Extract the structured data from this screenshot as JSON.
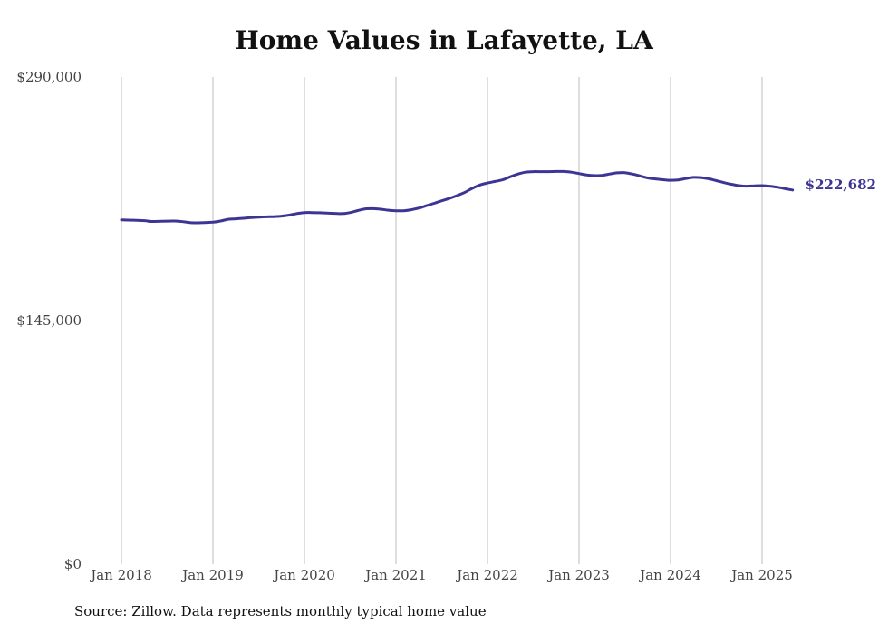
{
  "chart_data": {
    "type": "line",
    "title": "Home Values in Lafayette, LA",
    "xlabel": "",
    "ylabel": "",
    "ylim": [
      0,
      290000
    ],
    "y_ticks": [
      {
        "value": 0,
        "label": "$0"
      },
      {
        "value": 145000,
        "label": "$145,000"
      },
      {
        "value": 290000,
        "label": "$290,000"
      }
    ],
    "x_ticks": [
      "Jan 2018",
      "Jan 2019",
      "Jan 2020",
      "Jan 2021",
      "Jan 2022",
      "Jan 2023",
      "Jan 2024",
      "Jan 2025"
    ],
    "grid": "vertical",
    "series": [
      {
        "color": "#3d3594",
        "x": [
          "2018-01",
          "2018-04",
          "2018-05",
          "2018-08",
          "2018-10",
          "2018-11",
          "2019-01",
          "2019-02",
          "2019-03",
          "2019-04",
          "2019-05",
          "2019-06",
          "2019-07",
          "2019-08",
          "2019-09",
          "2019-10",
          "2019-11",
          "2019-12",
          "2020-01",
          "2020-02",
          "2020-03",
          "2020-04",
          "2020-05",
          "2020-06",
          "2020-07",
          "2020-08",
          "2020-09",
          "2020-10",
          "2020-11",
          "2020-12",
          "2021-01",
          "2021-02",
          "2021-03",
          "2021-04",
          "2021-05",
          "2021-06",
          "2021-07",
          "2021-08",
          "2021-09",
          "2021-10",
          "2021-11",
          "2021-12",
          "2022-01",
          "2022-02",
          "2022-03",
          "2022-04",
          "2022-05",
          "2022-06",
          "2022-07",
          "2022-08",
          "2022-09",
          "2022-10",
          "2022-11",
          "2022-12",
          "2023-01",
          "2023-02",
          "2023-03",
          "2023-04",
          "2023-05",
          "2023-06",
          "2023-07",
          "2023-08",
          "2023-09",
          "2023-10",
          "2023-11",
          "2023-12",
          "2024-01",
          "2024-02",
          "2024-03",
          "2024-04",
          "2024-05",
          "2024-06",
          "2024-07",
          "2024-08",
          "2024-09",
          "2024-10",
          "2024-11",
          "2024-12",
          "2025-01",
          "2025-02",
          "2025-03",
          "2025-04",
          "2025-05"
        ],
        "values": [
          205000,
          204500,
          204000,
          204300,
          203400,
          203200,
          203600,
          204300,
          205300,
          205600,
          205900,
          206300,
          206600,
          206800,
          206900,
          207200,
          207800,
          208700,
          209300,
          209300,
          209200,
          209000,
          208800,
          208700,
          209300,
          210500,
          211500,
          211600,
          211300,
          210700,
          210400,
          210400,
          211000,
          212000,
          213400,
          214800,
          216300,
          217700,
          219400,
          221300,
          223700,
          225700,
          226900,
          227800,
          228800,
          230600,
          232200,
          233300,
          233600,
          233600,
          233600,
          233700,
          233700,
          233300,
          232500,
          231700,
          231300,
          231400,
          232200,
          232900,
          233000,
          232200,
          231100,
          229900,
          229300,
          228800,
          228500,
          228700,
          229500,
          230200,
          230100,
          229400,
          228300,
          227100,
          226100,
          225300,
          225000,
          225200,
          225300,
          225000,
          224400,
          223500,
          222682
        ]
      }
    ],
    "end_label": "$222,682"
  },
  "source_note": "Source: Zillow. Data represents monthly typical home value"
}
